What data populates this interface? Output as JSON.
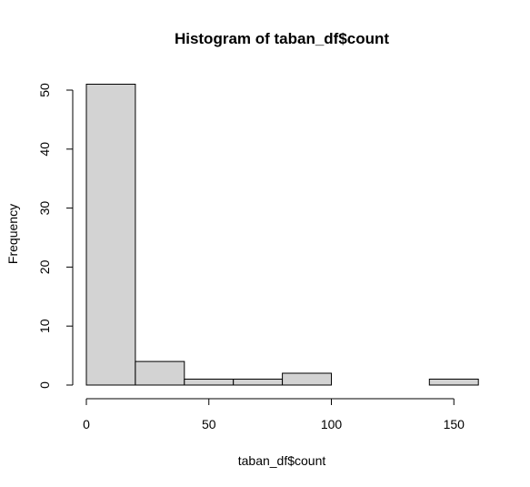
{
  "chart_data": {
    "type": "bar",
    "title": "Histogram of taban_df$count",
    "xlabel": "taban_df$count",
    "ylabel": "Frequency",
    "bins": [
      {
        "from": 0,
        "to": 20,
        "count": 51
      },
      {
        "from": 20,
        "to": 40,
        "count": 4
      },
      {
        "from": 40,
        "to": 60,
        "count": 1
      },
      {
        "from": 60,
        "to": 80,
        "count": 1
      },
      {
        "from": 80,
        "to": 100,
        "count": 2
      },
      {
        "from": 100,
        "to": 120,
        "count": 0
      },
      {
        "from": 120,
        "to": 140,
        "count": 0
      },
      {
        "from": 140,
        "to": 160,
        "count": 1
      }
    ],
    "xlim": [
      0,
      160
    ],
    "ylim": [
      0,
      50
    ],
    "x_ticks": [
      0,
      50,
      100,
      150
    ],
    "y_ticks": [
      0,
      10,
      20,
      30,
      40,
      50
    ],
    "grid": false,
    "colors": {
      "bar_fill": "#d3d3d3",
      "bar_stroke": "#000000"
    }
  }
}
